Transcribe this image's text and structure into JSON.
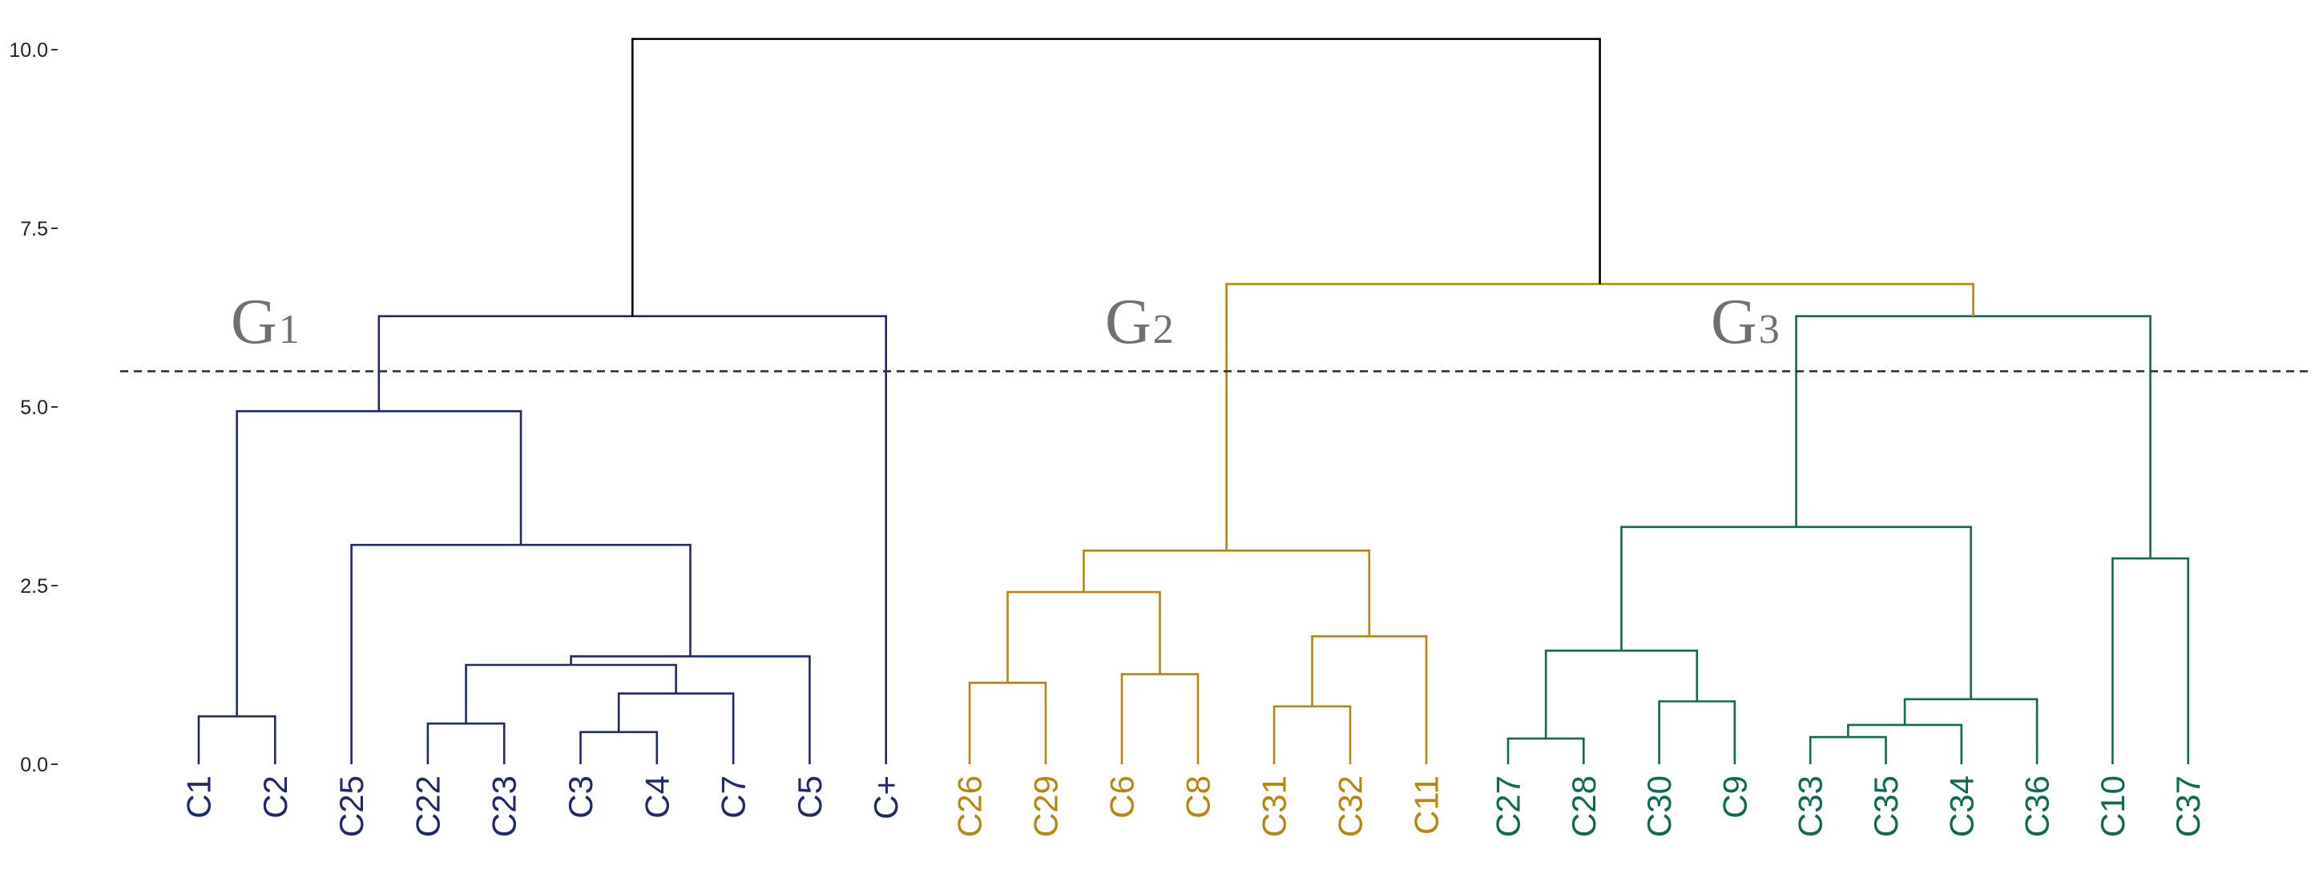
{
  "chart_data": {
    "type": "dendrogram",
    "title": "",
    "xlabel": "",
    "ylabel": "",
    "ylim": [
      0,
      10.15
    ],
    "y_ticks": [
      {
        "value": 0.0,
        "label": "0.0"
      },
      {
        "value": 2.5,
        "label": "2.5"
      },
      {
        "value": 5.0,
        "label": "5.0"
      },
      {
        "value": 7.5,
        "label": "7.5"
      },
      {
        "value": 10.0,
        "label": "10.0"
      }
    ],
    "cut_height": 5.5,
    "cut_line_style": "dashed",
    "grid": false,
    "colors": {
      "G1": "#1f2a6b",
      "G2": "#b8860b",
      "G3": "#0e6b50",
      "root": "#000000",
      "axis": "#333333",
      "cut": "#333333",
      "group_label": "#707070"
    },
    "leaves": [
      {
        "label": "C1",
        "group": "G1"
      },
      {
        "label": "C2",
        "group": "G1"
      },
      {
        "label": "C25",
        "group": "G1"
      },
      {
        "label": "C22",
        "group": "G1"
      },
      {
        "label": "C23",
        "group": "G1"
      },
      {
        "label": "C3",
        "group": "G1"
      },
      {
        "label": "C4",
        "group": "G1"
      },
      {
        "label": "C7",
        "group": "G1"
      },
      {
        "label": "C5",
        "group": "G1"
      },
      {
        "label": "C+",
        "group": "G1"
      },
      {
        "label": "C26",
        "group": "G2"
      },
      {
        "label": "C29",
        "group": "G2"
      },
      {
        "label": "C6",
        "group": "G2"
      },
      {
        "label": "C8",
        "group": "G2"
      },
      {
        "label": "C31",
        "group": "G2"
      },
      {
        "label": "C32",
        "group": "G2"
      },
      {
        "label": "C11",
        "group": "G2"
      },
      {
        "label": "C27",
        "group": "G3"
      },
      {
        "label": "C28",
        "group": "G3"
      },
      {
        "label": "C30",
        "group": "G3"
      },
      {
        "label": "C9",
        "group": "G3"
      },
      {
        "label": "C33",
        "group": "G3"
      },
      {
        "label": "C35",
        "group": "G3"
      },
      {
        "label": "C34",
        "group": "G3"
      },
      {
        "label": "C36",
        "group": "G3"
      },
      {
        "label": "C10",
        "group": "G3"
      },
      {
        "label": "C37",
        "group": "G3"
      }
    ],
    "merges": [
      {
        "id": "m1",
        "children": [
          "C1",
          "C2"
        ],
        "height": 0.67,
        "group": "G1"
      },
      {
        "id": "m2",
        "children": [
          "C22",
          "C23"
        ],
        "height": 0.57,
        "group": "G1"
      },
      {
        "id": "m3",
        "children": [
          "C3",
          "C4"
        ],
        "height": 0.45,
        "group": "G1"
      },
      {
        "id": "m4",
        "children": [
          "m3",
          "C7"
        ],
        "height": 0.99,
        "group": "G1"
      },
      {
        "id": "m5",
        "children": [
          "m2",
          "m4"
        ],
        "height": 1.39,
        "group": "G1"
      },
      {
        "id": "m6",
        "children": [
          "m5",
          "C5"
        ],
        "height": 1.51,
        "group": "G1"
      },
      {
        "id": "m7",
        "children": [
          "C25",
          "m6"
        ],
        "height": 3.07,
        "group": "G1"
      },
      {
        "id": "m8",
        "children": [
          "m1",
          "m7"
        ],
        "height": 4.94,
        "group": "G1"
      },
      {
        "id": "m9",
        "children": [
          "m8",
          "C+"
        ],
        "height": 6.27,
        "group": "G1"
      },
      {
        "id": "m10",
        "children": [
          "C26",
          "C29"
        ],
        "height": 1.14,
        "group": "G2"
      },
      {
        "id": "m11",
        "children": [
          "C6",
          "C8"
        ],
        "height": 1.26,
        "group": "G2"
      },
      {
        "id": "m12",
        "children": [
          "m10",
          "m11"
        ],
        "height": 2.41,
        "group": "G2"
      },
      {
        "id": "m13",
        "children": [
          "C31",
          "C32"
        ],
        "height": 0.81,
        "group": "G2"
      },
      {
        "id": "m14",
        "children": [
          "m13",
          "C11"
        ],
        "height": 1.79,
        "group": "G2"
      },
      {
        "id": "m15",
        "children": [
          "m12",
          "m14"
        ],
        "height": 2.99,
        "group": "G2"
      },
      {
        "id": "m16",
        "children": [
          "C27",
          "C28"
        ],
        "height": 0.36,
        "group": "G3"
      },
      {
        "id": "m17",
        "children": [
          "C30",
          "C9"
        ],
        "height": 0.88,
        "group": "G3"
      },
      {
        "id": "m18",
        "children": [
          "m16",
          "m17"
        ],
        "height": 1.59,
        "group": "G3"
      },
      {
        "id": "m19",
        "children": [
          "C33",
          "C35"
        ],
        "height": 0.38,
        "group": "G3"
      },
      {
        "id": "m20",
        "children": [
          "m19",
          "C34"
        ],
        "height": 0.55,
        "group": "G3"
      },
      {
        "id": "m21",
        "children": [
          "m20",
          "C36"
        ],
        "height": 0.91,
        "group": "G3"
      },
      {
        "id": "m22",
        "children": [
          "m18",
          "m21"
        ],
        "height": 3.32,
        "group": "G3"
      },
      {
        "id": "m23",
        "children": [
          "C10",
          "C37"
        ],
        "height": 2.88,
        "group": "G3"
      },
      {
        "id": "m24",
        "children": [
          "m22",
          "m23"
        ],
        "height": 6.27,
        "group": "G3"
      },
      {
        "id": "m25",
        "children": [
          "m15",
          "m24"
        ],
        "height": 6.72,
        "group": "G2"
      },
      {
        "id": "m26",
        "children": [
          "m9",
          "m25"
        ],
        "height": 10.15,
        "group": "root"
      }
    ],
    "group_labels": [
      {
        "main": "G",
        "sub": "1",
        "group": "G1"
      },
      {
        "main": "G",
        "sub": "2",
        "group": "G2"
      },
      {
        "main": "G",
        "sub": "3",
        "group": "G3"
      }
    ]
  }
}
